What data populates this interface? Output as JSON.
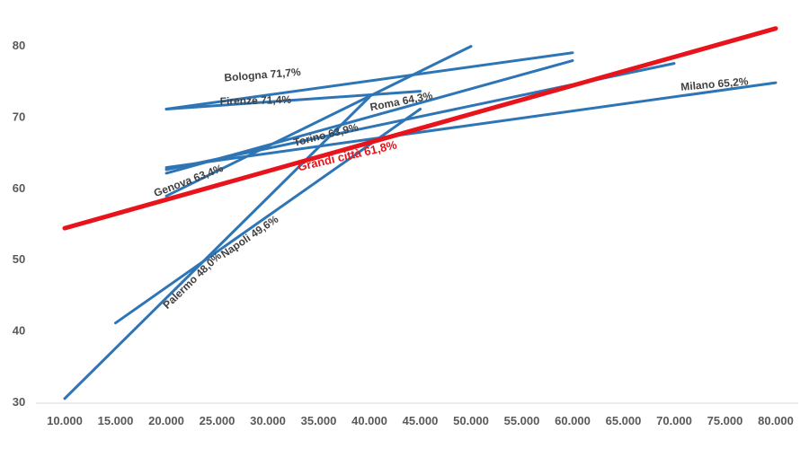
{
  "chart_data": {
    "type": "line",
    "title": "",
    "xlabel": "",
    "ylabel": "",
    "xlim": [
      10000,
      80000
    ],
    "ylim": [
      30,
      80
    ],
    "x_ticks": [
      "10.000",
      "15.000",
      "20.000",
      "25.000",
      "30.000",
      "35.000",
      "40.000",
      "45.000",
      "50.000",
      "55.000",
      "60.000",
      "65.000",
      "70.000",
      "75.000",
      "80.000"
    ],
    "y_ticks": [
      "30",
      "40",
      "50",
      "60",
      "70",
      "80"
    ],
    "grid": false,
    "legend": "none",
    "colors": {
      "series": "#2e75b6",
      "highlight": "#e8141b",
      "axis": "#d9d9d9"
    },
    "series": [
      {
        "name": "Palermo 48,0%",
        "color": "#2e75b6",
        "highlight": false,
        "points": [
          [
            10000,
            30.4
          ],
          [
            40000,
            72.7
          ]
        ]
      },
      {
        "name": "Napoli 49,6%",
        "color": "#2e75b6",
        "highlight": false,
        "points": [
          [
            15000,
            41.0
          ],
          [
            45000,
            71.0
          ]
        ]
      },
      {
        "name": "Genova 63,4%",
        "color": "#2e75b6",
        "highlight": false,
        "points": [
          [
            20000,
            58.8
          ],
          [
            50000,
            79.8
          ]
        ]
      },
      {
        "name": "Torino 63,9%",
        "color": "#2e75b6",
        "highlight": false,
        "points": [
          [
            20000,
            62.0
          ],
          [
            60000,
            77.8
          ]
        ]
      },
      {
        "name": "Roma 64,3%",
        "color": "#2e75b6",
        "highlight": false,
        "points": [
          [
            20000,
            62.5
          ],
          [
            70000,
            77.4
          ]
        ]
      },
      {
        "name": "Milano 65,2%",
        "color": "#2e75b6",
        "highlight": false,
        "points": [
          [
            20000,
            62.8
          ],
          [
            80000,
            74.7
          ]
        ]
      },
      {
        "name": "Firenze 71,4%",
        "color": "#2e75b6",
        "highlight": false,
        "points": [
          [
            20000,
            71.0
          ],
          [
            45000,
            73.5
          ]
        ]
      },
      {
        "name": "Bologna 71,7%",
        "color": "#2e75b6",
        "highlight": false,
        "points": [
          [
            20000,
            71.0
          ],
          [
            60000,
            78.9
          ]
        ]
      },
      {
        "name": "Grandi città 61,8%",
        "color": "#e8141b",
        "highlight": true,
        "points": [
          [
            10000,
            54.3
          ],
          [
            80000,
            82.3
          ]
        ]
      }
    ],
    "labels": [
      {
        "text": "Bologna 71,7%",
        "x": 29500,
        "y": 75.3,
        "angle": -4.5,
        "highlight": false
      },
      {
        "text": "Firenze 71,4%",
        "x": 28800,
        "y": 71.7,
        "angle": -1.5,
        "highlight": false
      },
      {
        "text": "Roma 64,3%",
        "x": 43200,
        "y": 71.6,
        "angle": -11,
        "highlight": false
      },
      {
        "text": "Torino 63,9%",
        "x": 35800,
        "y": 66.9,
        "angle": -14,
        "highlight": false
      },
      {
        "text": "Grandi città 61,8%",
        "x": 37900,
        "y": 63.9,
        "angle": -13,
        "highlight": true
      },
      {
        "text": "Genova 63,4%",
        "x": 22300,
        "y": 60.5,
        "angle": -21,
        "highlight": false
      },
      {
        "text": "Milano 65,2%",
        "x": 74000,
        "y": 74.0,
        "angle": -5,
        "highlight": false
      },
      {
        "text": "Napoli 49,6%",
        "x": 28400,
        "y": 52.7,
        "angle": -34,
        "highlight": false
      },
      {
        "text": "Palermo 48,0%",
        "x": 22800,
        "y": 46.6,
        "angle": -44,
        "highlight": false
      }
    ]
  }
}
